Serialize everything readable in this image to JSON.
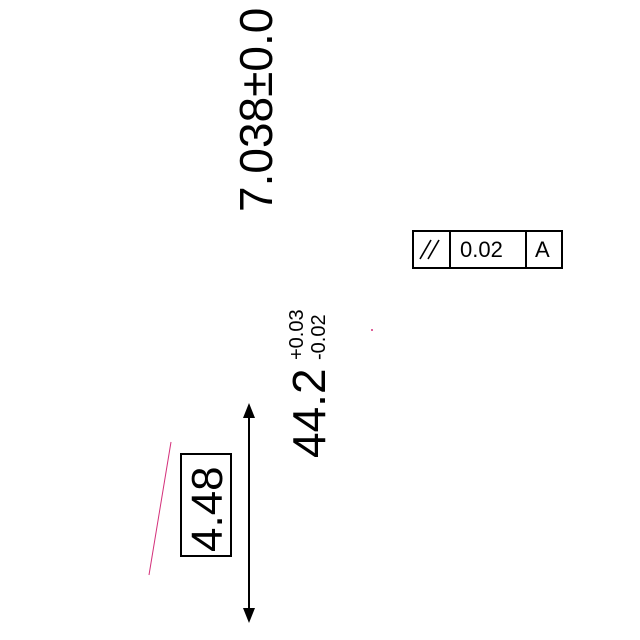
{
  "dimensions": {
    "top_dim": {
      "text": "7.038±0.0"
    },
    "tolerance_dim": {
      "nominal": "44.2",
      "upper": "+0.03",
      "lower": "-0.02"
    },
    "basic_dim": {
      "text": "4.48"
    }
  },
  "feature_control_frame": {
    "symbol_name": "parallelism-icon",
    "tolerance": "0.02",
    "datum": "A"
  },
  "colors": {
    "ink": "#000000",
    "construction_line": "#d4307a"
  }
}
